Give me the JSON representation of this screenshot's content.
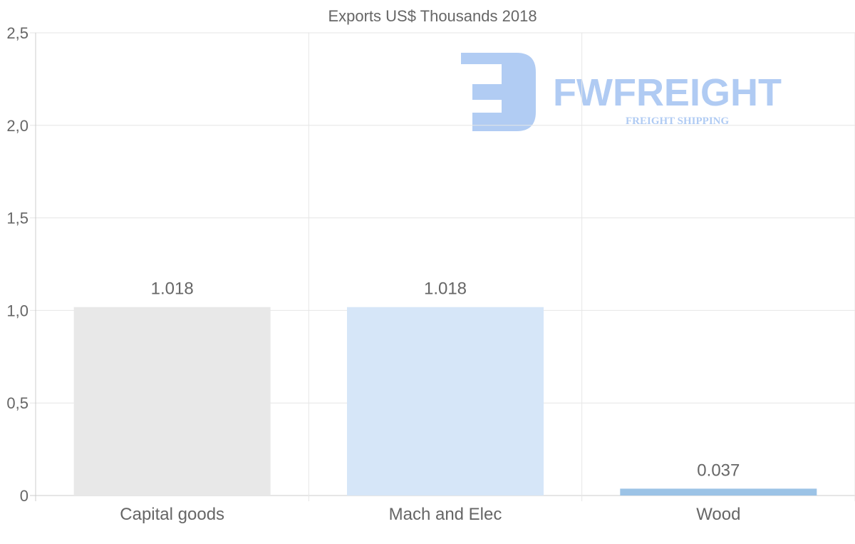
{
  "chart_data": {
    "type": "bar",
    "title": "Exports US$ Thousands 2018",
    "categories": [
      "Capital goods",
      "Mach and Elec",
      "Wood"
    ],
    "values": [
      1.018,
      1.018,
      0.037
    ],
    "data_labels": [
      "1.018",
      "1.018",
      "0.037"
    ],
    "bar_colors": [
      "#e8e8e8",
      "#d6e6f8",
      "#9cc3e6"
    ],
    "xlabel": "",
    "ylabel": "",
    "ylim": [
      0,
      2.5
    ],
    "yticks": [
      0,
      0.5,
      1.0,
      1.5,
      2.0,
      2.5
    ],
    "ytick_labels": [
      "0",
      "0,5",
      "1,0",
      "1,5",
      "2,0",
      "2,5"
    ],
    "grid": true,
    "legend": "none"
  },
  "watermark": {
    "brand": "FWFREIGHT",
    "tagline": "FREIGHT SHIPPING",
    "color": "#a8c6f2"
  }
}
